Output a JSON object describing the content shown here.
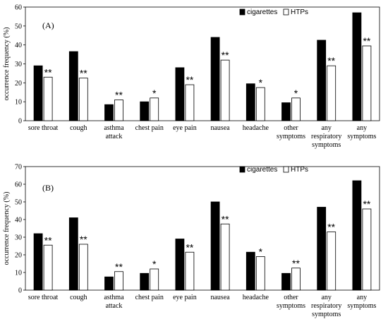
{
  "chart_data": [
    {
      "type": "bar",
      "panel_label": "(A)",
      "ylabel": "occurrence frequency (%)",
      "ylim": [
        0,
        60
      ],
      "yticks": [
        0,
        10,
        20,
        30,
        40,
        50,
        60
      ],
      "categories": [
        [
          "sore throat"
        ],
        [
          "cough"
        ],
        [
          "asthma",
          "attack"
        ],
        [
          "chest pain"
        ],
        [
          "eye pain"
        ],
        [
          "nausea"
        ],
        [
          "headache"
        ],
        [
          "other",
          "symptoms"
        ],
        [
          "any",
          "respiratory",
          "symptoms"
        ],
        [
          "any",
          "symptoms"
        ]
      ],
      "series": [
        {
          "name": "cigarettes",
          "color": "#000000",
          "values": [
            29,
            36.5,
            8.5,
            10,
            28,
            44,
            19.5,
            9.5,
            42.5,
            57
          ]
        },
        {
          "name": "HTPs",
          "color": "#ffffff",
          "values": [
            23,
            22.5,
            11,
            12,
            19,
            32,
            17.5,
            12,
            29,
            39.5
          ]
        }
      ],
      "significance": [
        "**",
        "**",
        "**",
        "*",
        "**",
        "**",
        "*",
        "*",
        "**",
        "**"
      ],
      "legend_position": "top-right"
    },
    {
      "type": "bar",
      "panel_label": "(B)",
      "ylabel": "occurrence frequency (%)",
      "ylim": [
        0,
        70
      ],
      "yticks": [
        0,
        10,
        20,
        30,
        40,
        50,
        60,
        70
      ],
      "categories": [
        [
          "sore throat"
        ],
        [
          "cough"
        ],
        [
          "asthma",
          "attack"
        ],
        [
          "chest pain"
        ],
        [
          "eye pain"
        ],
        [
          "nausea"
        ],
        [
          "headache"
        ],
        [
          "other",
          "symptoms"
        ],
        [
          "any",
          "respiratory",
          "symptoms"
        ],
        [
          "any",
          "symptoms"
        ]
      ],
      "series": [
        {
          "name": "cigarettes",
          "color": "#000000",
          "values": [
            32,
            41,
            7.5,
            9.5,
            29,
            50,
            21.5,
            9.5,
            47,
            62
          ]
        },
        {
          "name": "HTPs",
          "color": "#ffffff",
          "values": [
            25.5,
            26,
            10.5,
            12,
            21.5,
            37.5,
            19,
            12.5,
            33,
            46
          ]
        }
      ],
      "significance": [
        "**",
        "**",
        "**",
        "*",
        "**",
        "**",
        "*",
        "**",
        "**",
        "**"
      ],
      "legend_position": "top-right"
    }
  ]
}
